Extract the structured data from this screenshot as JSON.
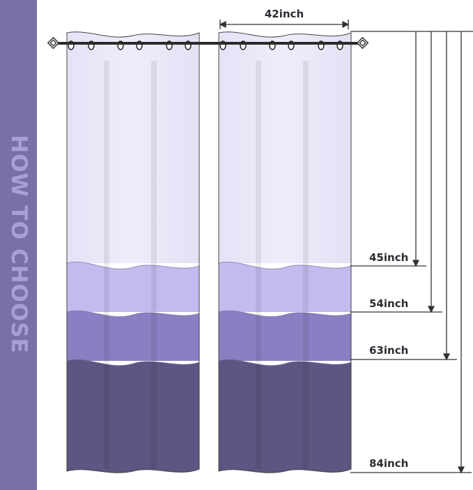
{
  "side_banner": {
    "text": "HOW TO CHOOSE"
  },
  "width_label": "42inch",
  "length_labels": [
    "45inch",
    "54inch",
    "63inch",
    "84inch"
  ],
  "colors": {
    "banner": "#7b6fa8",
    "tier_white": "#ebe7f8",
    "tier_light_purple": "#c4baee",
    "tier_medium_purple": "#8b7ec2",
    "tier_dark_purple": "#5d5582"
  }
}
